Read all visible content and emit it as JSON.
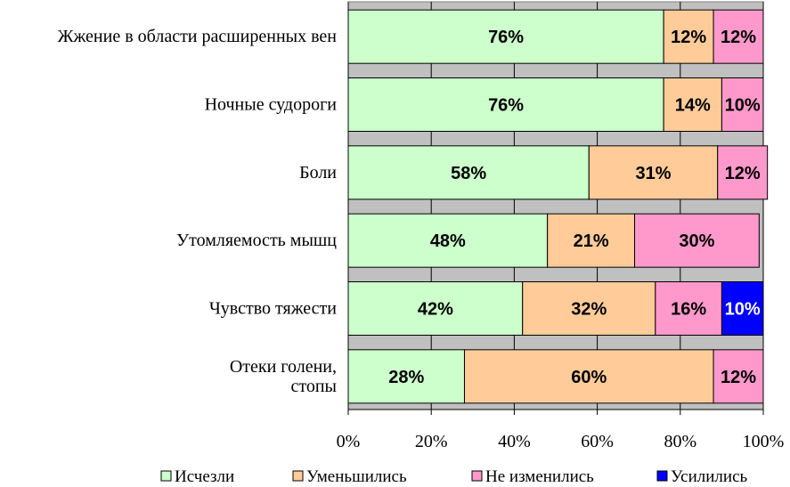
{
  "chart_data": {
    "type": "bar",
    "orientation": "horizontal",
    "stacked": "percent",
    "categories": [
      [
        "Жжение в области расширенных вен"
      ],
      [
        "Ночные судороги"
      ],
      [
        "Боли"
      ],
      [
        "Утомляемость мышц"
      ],
      [
        "Чувство тяжести"
      ],
      [
        "Отеки голени,",
        "стопы"
      ]
    ],
    "series": [
      {
        "name": "Исчезли",
        "color": "#ccffcc",
        "label_color": "#000000",
        "values": [
          76,
          76,
          58,
          48,
          42,
          28
        ]
      },
      {
        "name": "Уменьшились",
        "color": "#ffcc99",
        "label_color": "#000000",
        "values": [
          12,
          14,
          31,
          21,
          32,
          60
        ]
      },
      {
        "name": "Не изменились",
        "color": "#ff99cc",
        "label_color": "#000000",
        "values": [
          12,
          10,
          12,
          30,
          16,
          12
        ]
      },
      {
        "name": "Усилились",
        "color": "#0000ff",
        "label_color": "#ffffff",
        "values": [
          0,
          0,
          0,
          0,
          10,
          0
        ]
      }
    ],
    "data_labels": [
      [
        "76%",
        "12%",
        "12%",
        ""
      ],
      [
        "76%",
        "14%",
        "10%",
        ""
      ],
      [
        "58%",
        "31%",
        "12%",
        ""
      ],
      [
        "48%",
        "21%",
        "30%",
        ""
      ],
      [
        "42%",
        "32%",
        "16%",
        "10%"
      ],
      [
        "28%",
        "60%",
        "12%",
        ""
      ]
    ],
    "x_ticks": [
      "0%",
      "20%",
      "40%",
      "60%",
      "80%",
      "100%"
    ],
    "xlim": [
      0,
      100
    ],
    "plot_background": "#c0c0c0",
    "grid": true,
    "legend_position": "bottom",
    "title": "",
    "xlabel": "",
    "ylabel": ""
  }
}
